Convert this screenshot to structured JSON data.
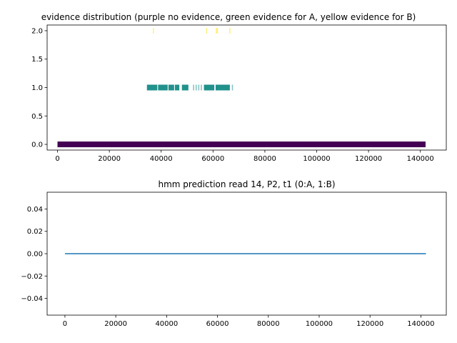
{
  "chart_data": [
    {
      "type": "scatter",
      "title": "evidence distribution (purple no evidence, green evidence for A, yellow evidence for B)",
      "xlim": [
        -4000,
        150000
      ],
      "ylim": [
        -0.1,
        2.1
      ],
      "xticks": [
        0,
        20000,
        40000,
        60000,
        80000,
        100000,
        120000,
        140000
      ],
      "xtick_labels": [
        "0",
        "20000",
        "40000",
        "60000",
        "80000",
        "100000",
        "120000",
        "140000"
      ],
      "yticks": [
        0.0,
        0.5,
        1.0,
        1.5,
        2.0
      ],
      "ytick_labels": [
        "0.0",
        "0.5",
        "1.0",
        "1.5",
        "2.0"
      ],
      "grid": false,
      "series": [
        {
          "color": "#440154",
          "y": 0,
          "segments": [
            [
              0,
              142000
            ]
          ]
        },
        {
          "color": "#21918c",
          "y": 1,
          "segments": [
            [
              34500,
              38500
            ],
            [
              38800,
              42500
            ],
            [
              42800,
              45000
            ],
            [
              45300,
              47000
            ],
            [
              48000,
              50500
            ],
            [
              56500,
              60500
            ],
            [
              61000,
              66500
            ]
          ],
          "ticks": [
            52500,
            53500,
            54500,
            55500,
            67500
          ]
        },
        {
          "color": "#fde725",
          "y": 2,
          "ticks": [
            37000,
            57500,
            61300,
            61700,
            66500
          ]
        }
      ]
    },
    {
      "type": "line",
      "title": "hmm prediction read 14, P2, t1 (0:A, 1:B)",
      "xlim": [
        -7000,
        150000
      ],
      "ylim": [
        -0.055,
        0.055
      ],
      "xticks": [
        0,
        20000,
        40000,
        60000,
        80000,
        100000,
        120000,
        140000
      ],
      "xtick_labels": [
        "0",
        "20000",
        "40000",
        "60000",
        "80000",
        "100000",
        "120000",
        "140000"
      ],
      "yticks": [
        -0.04,
        -0.02,
        0.0,
        0.02,
        0.04
      ],
      "ytick_labels": [
        "−0.04",
        "−0.02",
        "0.00",
        "0.02",
        "0.04"
      ],
      "grid": false,
      "series": [
        {
          "color": "#1f77b4",
          "x": [
            0,
            142000
          ],
          "y": [
            0,
            0
          ]
        }
      ]
    }
  ]
}
